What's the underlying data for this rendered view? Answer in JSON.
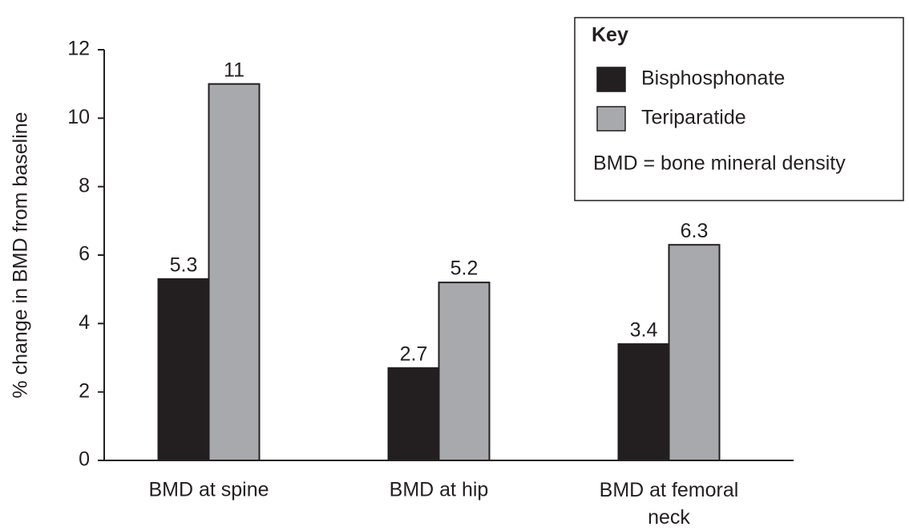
{
  "chart_data": {
    "type": "bar",
    "y_label": "% change in BMD from baseline",
    "categories": [
      "BMD at spine",
      "BMD at hip",
      "BMD at femoral neck"
    ],
    "series": [
      {
        "name": "Bisphosphonate",
        "color": "#231f20",
        "values": [
          5.3,
          2.7,
          3.4
        ]
      },
      {
        "name": "Teriparatide",
        "color": "#a7a9ac",
        "values": [
          11,
          5.2,
          6.3
        ]
      }
    ],
    "ylim": [
      0,
      12
    ],
    "yticks": [
      0,
      2,
      4,
      6,
      8,
      10,
      12
    ],
    "legend_title": "Key",
    "legend_note": "BMD = bone mineral density",
    "legend_position": "upper right",
    "grid": false
  }
}
